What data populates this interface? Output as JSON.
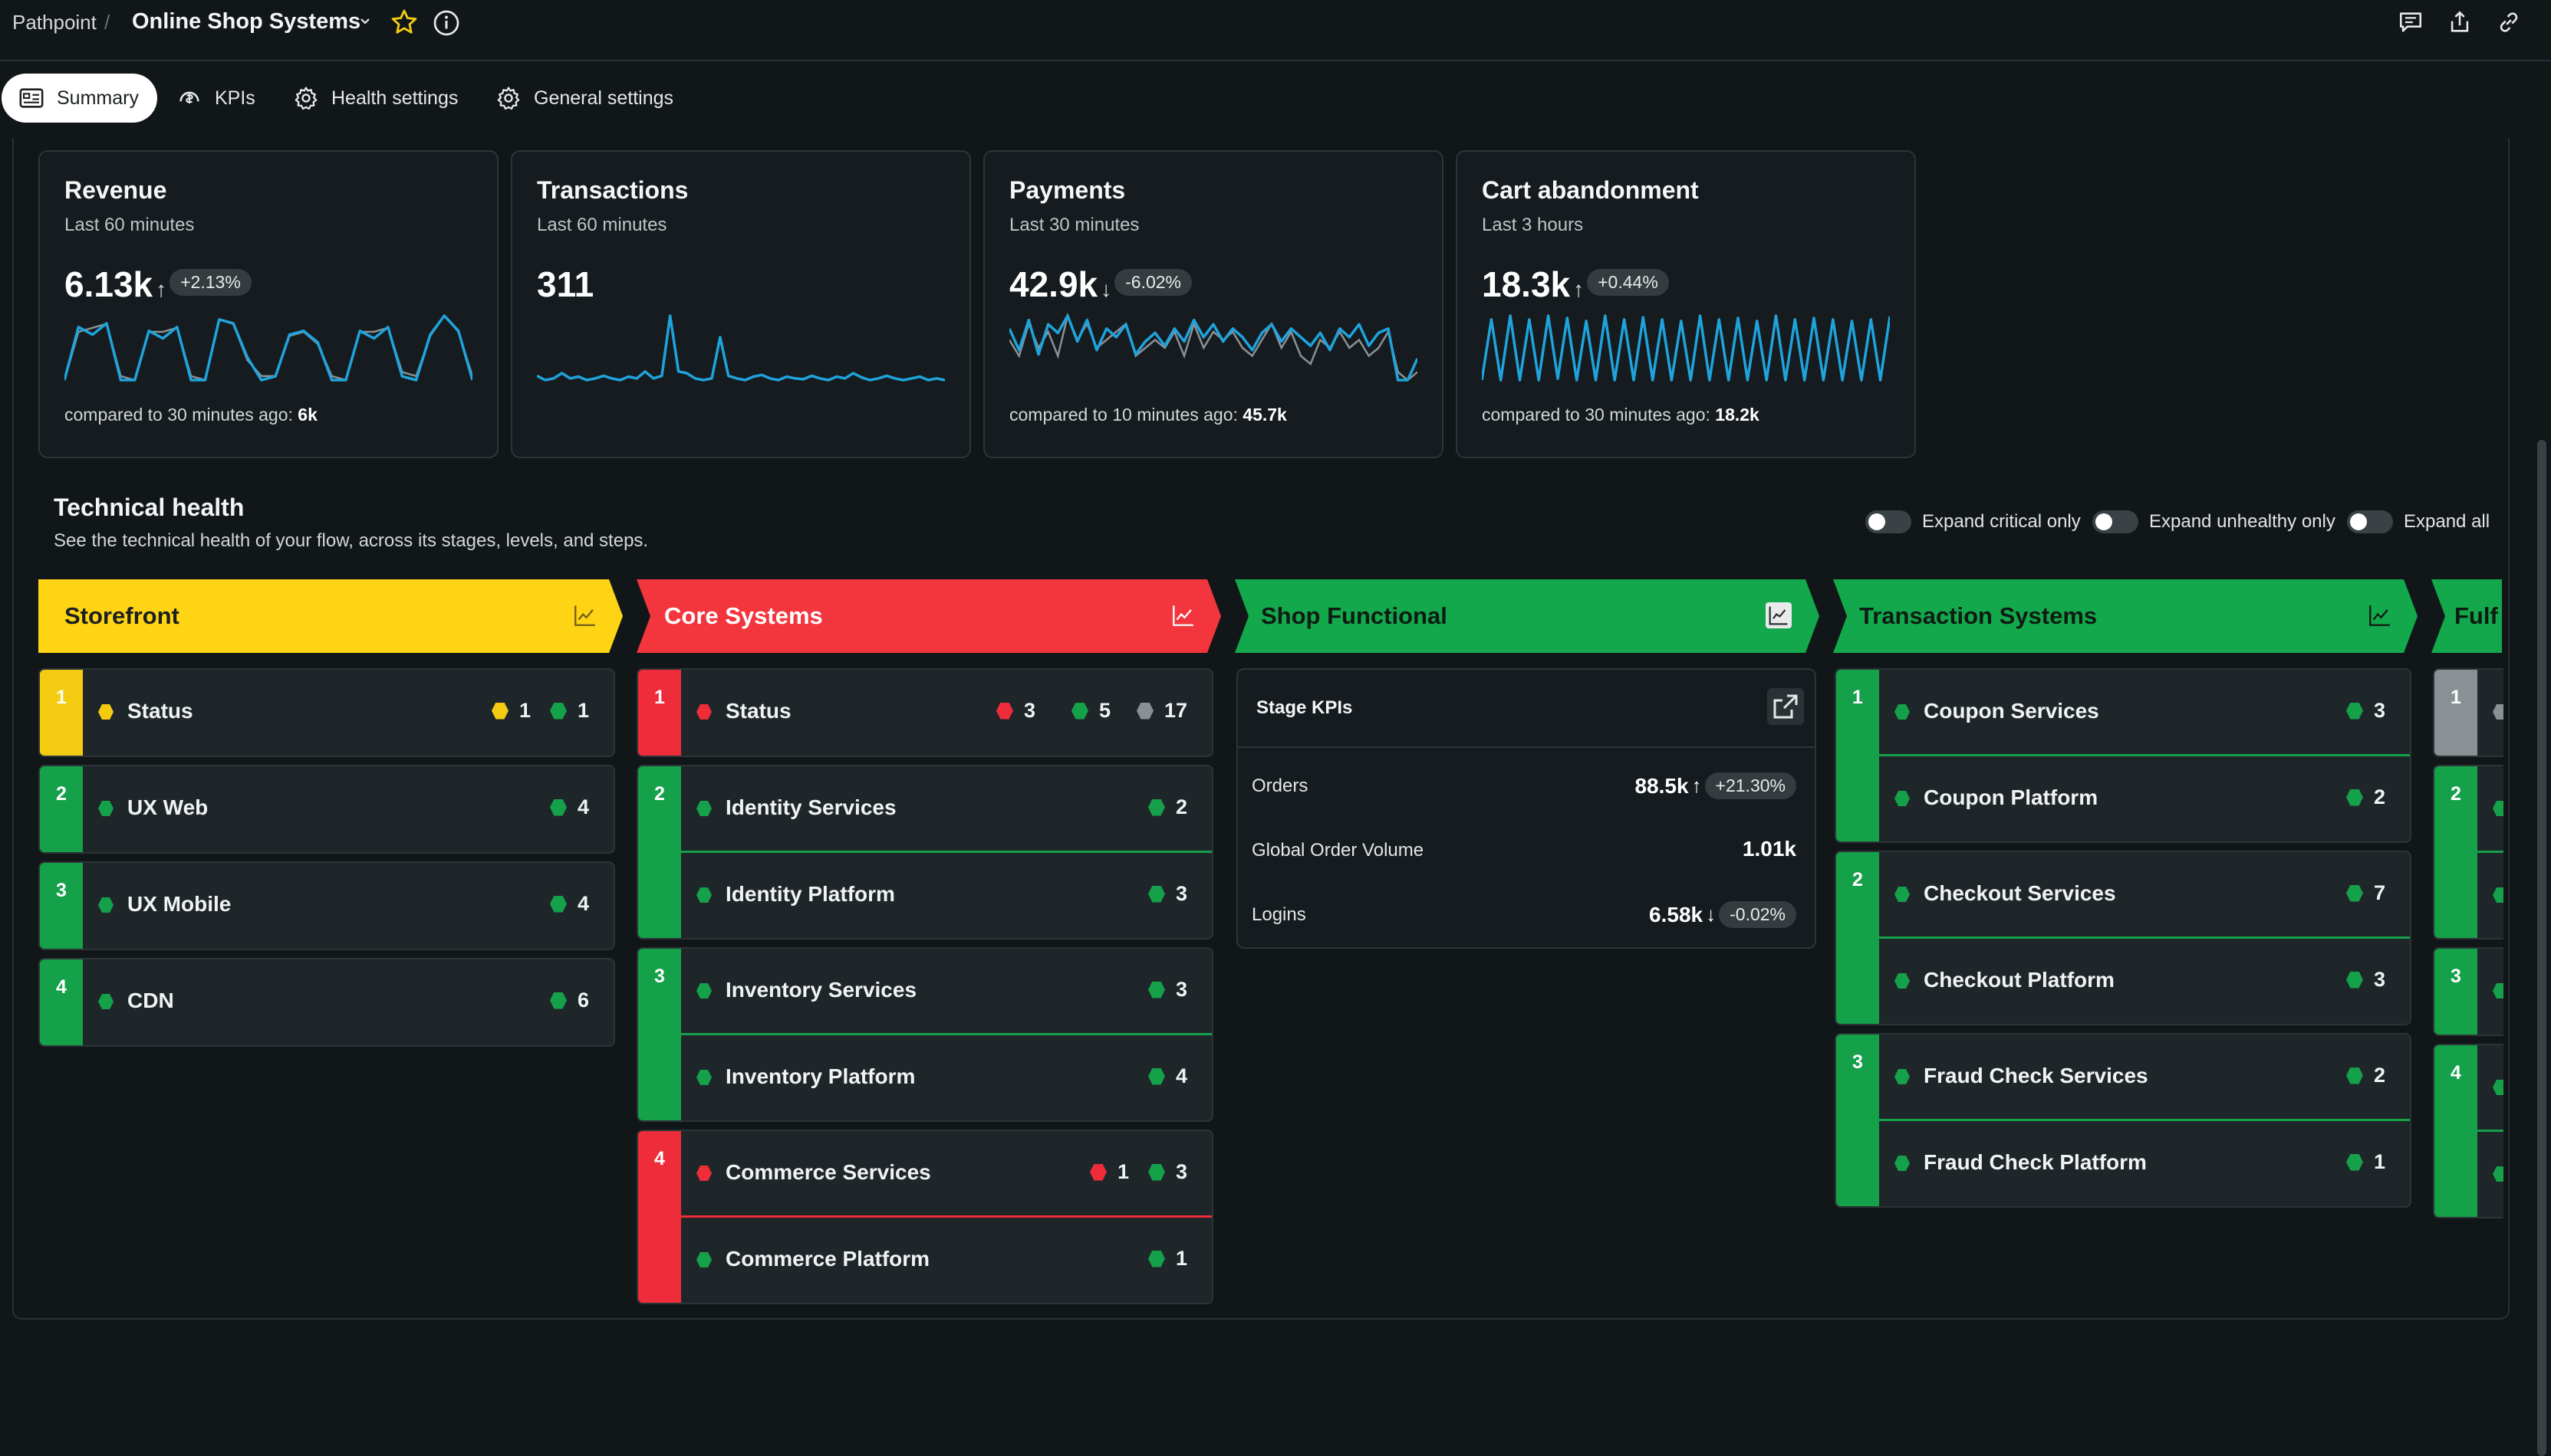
{
  "header": {
    "breadcrumb": "Pathpoint",
    "breadcrumb_separator": "/",
    "title": "Online Shop Systems",
    "icons": [
      "chevron-down-icon",
      "star-icon",
      "info-icon",
      "feedback-icon",
      "share-icon",
      "link-icon"
    ]
  },
  "tabs": [
    {
      "label": "Summary",
      "icon": "summary-icon",
      "active": true
    },
    {
      "label": "KPIs",
      "icon": "kpi-icon"
    },
    {
      "label": "Health settings",
      "icon": "gear-icon"
    },
    {
      "label": "General settings",
      "icon": "gear-icon"
    }
  ],
  "kpis": [
    {
      "title": "Revenue",
      "subtitle": "Last 60 minutes",
      "value": "6.13k",
      "arrow": "↑",
      "change": "+2.13%",
      "compare_label": "compared to 30 minutes ago:",
      "compare_value": "6k"
    },
    {
      "title": "Transactions",
      "subtitle": "Last 60 minutes",
      "value": "311",
      "arrow": "",
      "change": "",
      "compare_label": "",
      "compare_value": ""
    },
    {
      "title": "Payments",
      "subtitle": "Last 30 minutes",
      "value": "42.9k",
      "arrow": "↓",
      "change": "-6.02%",
      "compare_label": "compared to 10 minutes ago:",
      "compare_value": "45.7k"
    },
    {
      "title": "Cart abandonment",
      "subtitle": "Last 3 hours",
      "value": "18.3k",
      "arrow": "↑",
      "change": "+0.44%",
      "compare_label": "compared to 30 minutes ago:",
      "compare_value": "18.2k"
    }
  ],
  "sparklines": {
    "color": "#1fa3dc",
    "compare_color": "#8a9195",
    "revenue": [
      10,
      80,
      70,
      85,
      10,
      10,
      75,
      65,
      80,
      10,
      10,
      90,
      85,
      40,
      10,
      15,
      70,
      75,
      60,
      10,
      10,
      75,
      65,
      80,
      15,
      10,
      70,
      95,
      75,
      10
    ],
    "revenue_prev": [
      10,
      70,
      75,
      80,
      15,
      10,
      70,
      70,
      75,
      15,
      10,
      85,
      80,
      35,
      15,
      15,
      65,
      70,
      55,
      15,
      10,
      70,
      70,
      75,
      20,
      15,
      65,
      90,
      70,
      15
    ],
    "transactions": [
      15,
      10,
      12,
      18,
      12,
      14,
      10,
      12,
      15,
      12,
      10,
      14,
      12,
      20,
      12,
      15,
      85,
      20,
      18,
      12,
      10,
      12,
      60,
      15,
      12,
      10,
      14,
      16,
      12,
      10,
      14,
      12,
      11,
      15,
      12,
      10,
      14,
      12,
      18,
      13,
      10,
      12,
      15,
      12,
      10,
      12,
      14,
      10,
      12,
      10
    ],
    "payments": [
      70,
      45,
      80,
      40,
      75,
      65,
      85,
      55,
      80,
      45,
      70,
      60,
      75,
      40,
      55,
      65,
      50,
      70,
      55,
      80,
      60,
      75,
      55,
      70,
      60,
      45,
      65,
      75,
      55,
      70,
      60,
      50,
      65,
      45,
      70,
      60,
      75,
      50,
      65,
      70,
      10,
      10,
      35
    ],
    "payments_prev": [
      60,
      50,
      70,
      55,
      65,
      50,
      75,
      60,
      70,
      55,
      60,
      65,
      70,
      50,
      55,
      60,
      55,
      65,
      50,
      70,
      55,
      65,
      60,
      65,
      55,
      50,
      60,
      70,
      55,
      65,
      50,
      45,
      60,
      55,
      65,
      55,
      60,
      50,
      55,
      65,
      40,
      35,
      40
    ],
    "cart": [
      10,
      90,
      10,
      95,
      10,
      90,
      10,
      95,
      12,
      92,
      10,
      88,
      10,
      95,
      10,
      90,
      10,
      93,
      10,
      90,
      10,
      88,
      10,
      95,
      10,
      90,
      10,
      92,
      10,
      88,
      10,
      95,
      10,
      90,
      10,
      92,
      10,
      90,
      10,
      88,
      10,
      90,
      10,
      94
    ]
  },
  "technical_health": {
    "title": "Technical health",
    "description": "See the technical health of your flow, across its stages, levels, and steps.",
    "toggles": [
      "Expand critical only",
      "Expand unhealthy only",
      "Expand all"
    ]
  },
  "colors": {
    "green": "#15a04a",
    "yellow": "#f3cc12",
    "red": "#ee2c3a",
    "grey": "#8a9195"
  },
  "stages": [
    {
      "name": "Storefront",
      "status": "yellow",
      "levels": [
        {
          "num": "1",
          "status": "yellow",
          "steps": [
            {
              "label": "Status",
              "dot": "yellow",
              "counts": [
                {
                  "c": "yellow",
                  "n": "1"
                },
                {
                  "c": "green",
                  "n": "1"
                }
              ]
            }
          ]
        },
        {
          "num": "2",
          "status": "green",
          "steps": [
            {
              "label": "UX Web",
              "dot": "green",
              "counts": [
                {
                  "c": "green",
                  "n": "4"
                }
              ]
            }
          ]
        },
        {
          "num": "3",
          "status": "green",
          "steps": [
            {
              "label": "UX Mobile",
              "dot": "green",
              "counts": [
                {
                  "c": "green",
                  "n": "4"
                }
              ]
            }
          ]
        },
        {
          "num": "4",
          "status": "green",
          "steps": [
            {
              "label": "CDN",
              "dot": "green",
              "counts": [
                {
                  "c": "green",
                  "n": "6"
                }
              ]
            }
          ]
        }
      ]
    },
    {
      "name": "Core Systems",
      "status": "red",
      "levels": [
        {
          "num": "1",
          "status": "red",
          "steps": [
            {
              "label": "Status",
              "dot": "red",
              "counts": [
                {
                  "c": "red",
                  "n": "3"
                },
                {
                  "c": "green",
                  "n": "5"
                },
                {
                  "c": "grey",
                  "n": "17"
                }
              ]
            }
          ]
        },
        {
          "num": "2",
          "status": "green",
          "steps": [
            {
              "label": "Identity Services",
              "dot": "green",
              "counts": [
                {
                  "c": "green",
                  "n": "2"
                }
              ]
            },
            {
              "label": "Identity Platform",
              "dot": "green",
              "counts": [
                {
                  "c": "green",
                  "n": "3"
                }
              ]
            }
          ]
        },
        {
          "num": "3",
          "status": "green",
          "steps": [
            {
              "label": "Inventory Services",
              "dot": "green",
              "counts": [
                {
                  "c": "green",
                  "n": "3"
                }
              ]
            },
            {
              "label": "Inventory Platform",
              "dot": "green",
              "counts": [
                {
                  "c": "green",
                  "n": "4"
                }
              ]
            }
          ]
        },
        {
          "num": "4",
          "status": "red",
          "steps": [
            {
              "label": "Commerce Services",
              "dot": "red",
              "counts": [
                {
                  "c": "red",
                  "n": "1"
                },
                {
                  "c": "green",
                  "n": "3"
                }
              ]
            },
            {
              "label": "Commerce Platform",
              "dot": "green",
              "counts": [
                {
                  "c": "green",
                  "n": "1"
                }
              ]
            }
          ]
        }
      ]
    },
    {
      "name": "Shop Functional",
      "status": "green",
      "stage_kpis": {
        "title": "Stage KPIs",
        "rows": [
          {
            "name": "Orders",
            "value": "88.5k",
            "arrow": "↑",
            "change": "+21.30%"
          },
          {
            "name": "Global Order Volume",
            "value": "1.01k",
            "arrow": "",
            "change": ""
          },
          {
            "name": "Logins",
            "value": "6.58k",
            "arrow": "↓",
            "change": "-0.02%"
          }
        ]
      }
    },
    {
      "name": "Transaction Systems",
      "status": "green",
      "levels": [
        {
          "num": "1",
          "status": "green",
          "steps": [
            {
              "label": "Coupon Services",
              "dot": "green",
              "counts": [
                {
                  "c": "green",
                  "n": "3"
                }
              ]
            },
            {
              "label": "Coupon Platform",
              "dot": "green",
              "counts": [
                {
                  "c": "green",
                  "n": "2"
                }
              ]
            }
          ]
        },
        {
          "num": "2",
          "status": "green",
          "steps": [
            {
              "label": "Checkout Services",
              "dot": "green",
              "counts": [
                {
                  "c": "green",
                  "n": "7"
                }
              ]
            },
            {
              "label": "Checkout Platform",
              "dot": "green",
              "counts": [
                {
                  "c": "green",
                  "n": "3"
                }
              ]
            }
          ]
        },
        {
          "num": "3",
          "status": "green",
          "steps": [
            {
              "label": "Fraud Check Services",
              "dot": "green",
              "counts": [
                {
                  "c": "green",
                  "n": "2"
                }
              ]
            },
            {
              "label": "Fraud Check Platform",
              "dot": "green",
              "counts": [
                {
                  "c": "green",
                  "n": "1"
                }
              ]
            }
          ]
        }
      ]
    },
    {
      "name": "Fulf",
      "status": "green",
      "levels": [
        {
          "num": "1",
          "status": "grey",
          "steps": [
            {
              "label": "",
              "dot": "grey",
              "counts": []
            }
          ]
        },
        {
          "num": "2",
          "status": "green",
          "steps": [
            {
              "label": "",
              "dot": "green",
              "counts": []
            },
            {
              "label": "",
              "dot": "green",
              "counts": []
            }
          ]
        },
        {
          "num": "3",
          "status": "green",
          "steps": [
            {
              "label": "",
              "dot": "green",
              "counts": []
            }
          ]
        },
        {
          "num": "4",
          "status": "green",
          "steps": [
            {
              "label": "",
              "dot": "green",
              "counts": []
            },
            {
              "label": "",
              "dot": "green",
              "counts": []
            }
          ]
        }
      ]
    }
  ]
}
